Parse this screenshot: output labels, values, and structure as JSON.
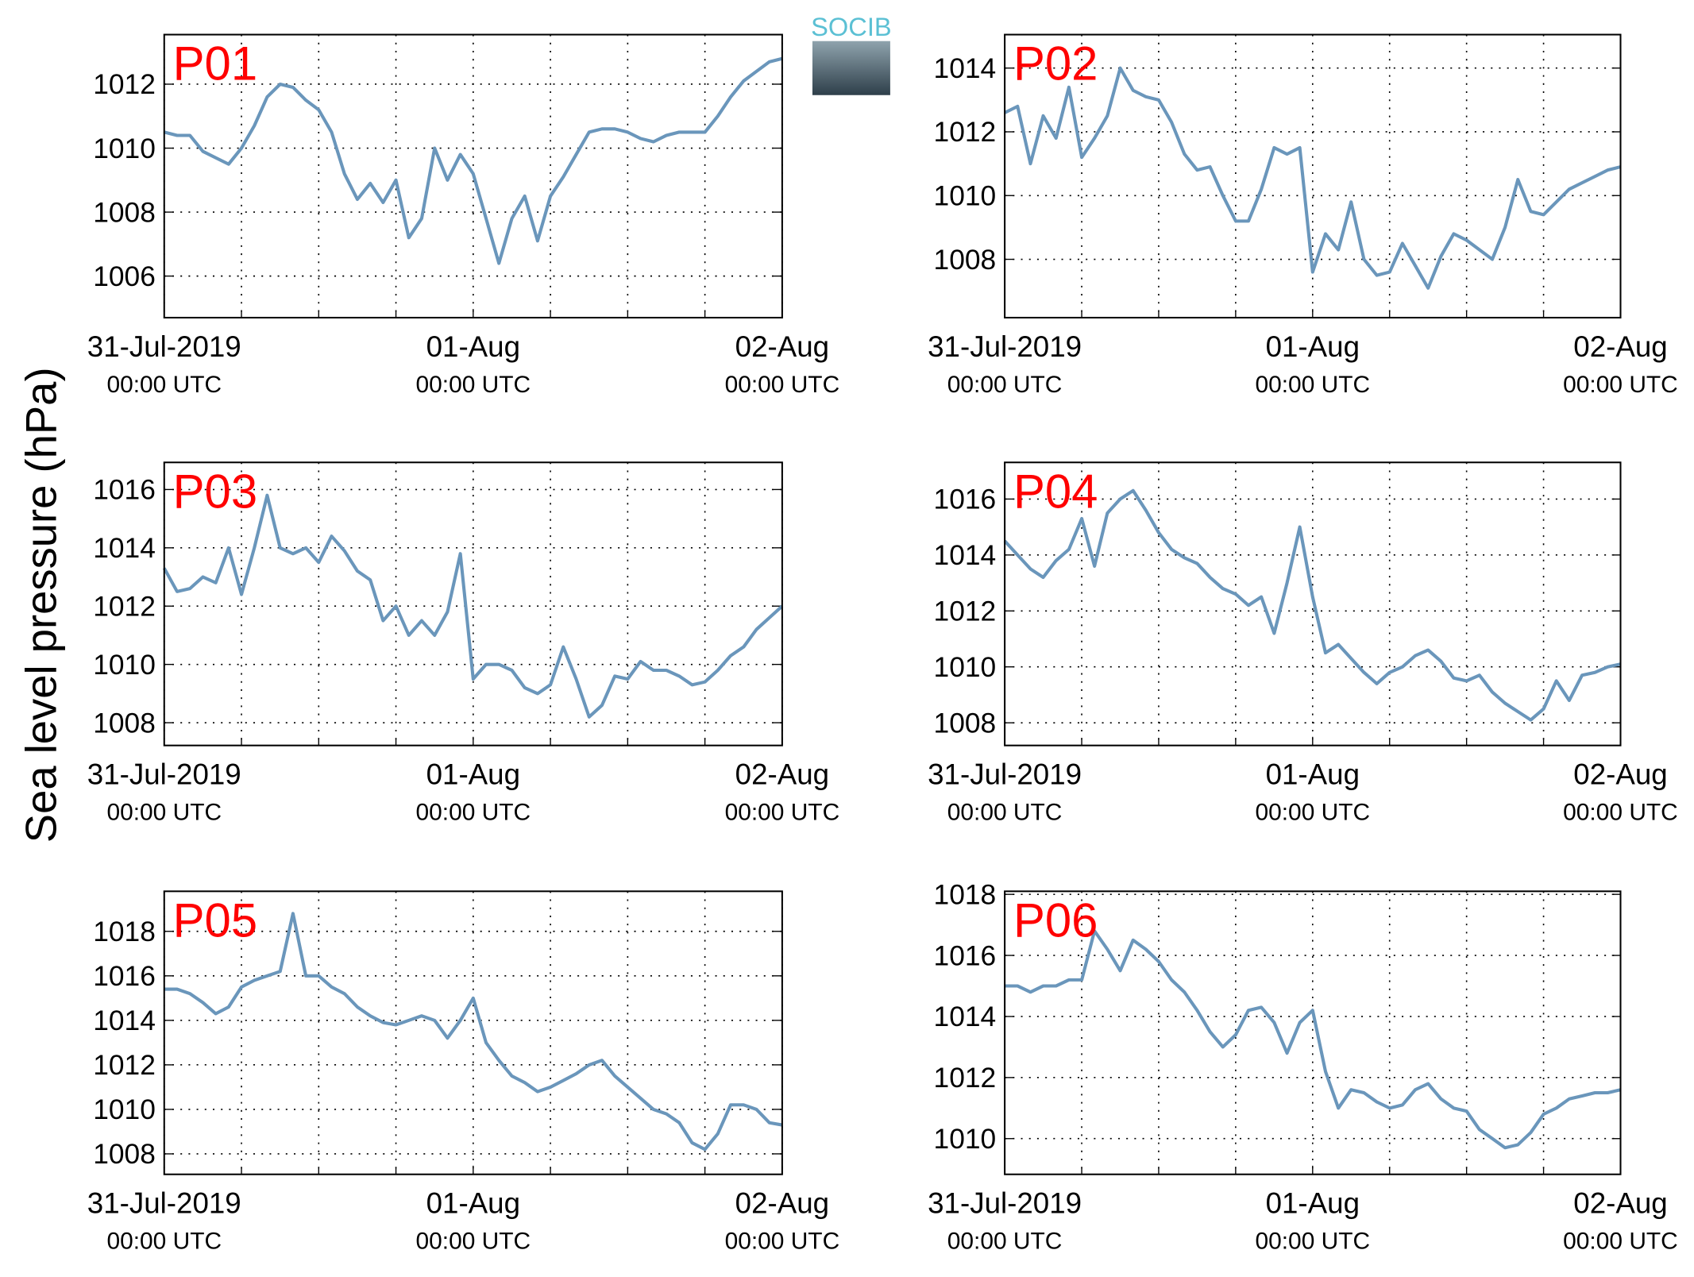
{
  "ylabel": "Sea level pressure (hPa)",
  "logo": "SOCIB",
  "chart_data": [
    {
      "type": "line",
      "title": "P01",
      "color": "#6a96bb",
      "grid": true,
      "x": [
        0,
        1,
        2,
        3,
        4,
        5,
        6,
        7,
        8,
        9,
        10,
        11,
        12,
        13,
        14,
        15,
        16,
        17,
        18,
        19,
        20,
        21,
        22,
        23,
        24,
        25,
        26,
        27,
        28,
        29,
        30,
        31,
        32,
        33,
        34,
        35,
        36,
        37,
        38,
        39,
        40,
        41,
        42,
        43,
        44,
        45,
        46,
        47,
        48
      ],
      "values": [
        1010.5,
        1010.4,
        1010.4,
        1009.9,
        1009.7,
        1009.5,
        1010.0,
        1010.7,
        1011.6,
        1012.0,
        1011.9,
        1011.5,
        1011.2,
        1010.5,
        1009.2,
        1008.4,
        1008.9,
        1008.3,
        1009.0,
        1007.2,
        1007.8,
        1010.0,
        1009.0,
        1009.8,
        1009.2,
        1007.8,
        1006.4,
        1007.8,
        1008.5,
        1007.1,
        1008.5,
        1009.1,
        1009.8,
        1010.5,
        1010.6,
        1010.6,
        1010.5,
        1010.3,
        1010.2,
        1010.4,
        1010.5,
        1010.5,
        1010.5,
        1011.0,
        1011.6,
        1012.1,
        1012.4,
        1012.7,
        1012.8
      ],
      "xlim": [
        0,
        48
      ],
      "xgrid": [
        6,
        12,
        18,
        30,
        36,
        42
      ],
      "xticks": [
        {
          "value": 0,
          "label": "31-Jul-2019",
          "sublabel": "00:00 UTC"
        },
        {
          "value": 24,
          "label": "01-Aug",
          "sublabel": "00:00 UTC"
        },
        {
          "value": 48,
          "label": "02-Aug",
          "sublabel": "00:00 UTC"
        }
      ],
      "ylim": [
        1004.7,
        1013.55
      ],
      "yticks": [
        1006,
        1008,
        1010,
        1012
      ]
    },
    {
      "type": "line",
      "title": "P02",
      "color": "#6a96bb",
      "grid": true,
      "x": [
        0,
        1,
        2,
        3,
        4,
        5,
        6,
        7,
        8,
        9,
        10,
        11,
        12,
        13,
        14,
        15,
        16,
        17,
        18,
        19,
        20,
        21,
        22,
        23,
        24,
        25,
        26,
        27,
        28,
        29,
        30,
        31,
        32,
        33,
        34,
        35,
        36,
        37,
        38,
        39,
        40,
        41,
        42,
        43,
        44,
        45,
        46,
        47,
        48
      ],
      "values": [
        1012.6,
        1012.8,
        1011.0,
        1012.5,
        1011.8,
        1013.4,
        1011.2,
        1011.8,
        1012.5,
        1014.0,
        1013.3,
        1013.1,
        1013.0,
        1012.3,
        1011.3,
        1010.8,
        1010.9,
        1010.0,
        1009.2,
        1009.2,
        1010.2,
        1011.5,
        1011.3,
        1011.5,
        1007.6,
        1008.8,
        1008.3,
        1009.8,
        1008.0,
        1007.5,
        1007.6,
        1008.5,
        1007.8,
        1007.1,
        1008.1,
        1008.8,
        1008.6,
        1008.3,
        1008.0,
        1009.0,
        1010.5,
        1009.5,
        1009.4,
        1009.8,
        1010.2,
        1010.4,
        1010.6,
        1010.8,
        1010.9
      ],
      "xlim": [
        0,
        48
      ],
      "xgrid": [
        6,
        12,
        18,
        30,
        36,
        42
      ],
      "xticks": [
        {
          "value": 0,
          "label": "31-Jul-2019",
          "sublabel": "00:00 UTC"
        },
        {
          "value": 24,
          "label": "01-Aug",
          "sublabel": "00:00 UTC"
        },
        {
          "value": 48,
          "label": "02-Aug",
          "sublabel": "00:00 UTC"
        }
      ],
      "ylim": [
        1006.17,
        1015.05
      ],
      "yticks": [
        1008,
        1010,
        1012,
        1014
      ]
    },
    {
      "type": "line",
      "title": "P03",
      "color": "#6a96bb",
      "grid": true,
      "x": [
        0,
        1,
        2,
        3,
        4,
        5,
        6,
        7,
        8,
        9,
        10,
        11,
        12,
        13,
        14,
        15,
        16,
        17,
        18,
        19,
        20,
        21,
        22,
        23,
        24,
        25,
        26,
        27,
        28,
        29,
        30,
        31,
        32,
        33,
        34,
        35,
        36,
        37,
        38,
        39,
        40,
        41,
        42,
        43,
        44,
        45,
        46,
        47,
        48
      ],
      "values": [
        1013.3,
        1012.5,
        1012.6,
        1013.0,
        1012.8,
        1014.0,
        1012.4,
        1014.0,
        1015.8,
        1014.0,
        1013.8,
        1014.0,
        1013.5,
        1014.4,
        1013.9,
        1013.2,
        1012.9,
        1011.5,
        1012.0,
        1011.0,
        1011.5,
        1011.0,
        1011.8,
        1013.8,
        1009.5,
        1010.0,
        1010.0,
        1009.8,
        1009.2,
        1009.0,
        1009.3,
        1010.6,
        1009.5,
        1008.2,
        1008.6,
        1009.6,
        1009.5,
        1010.1,
        1009.8,
        1009.8,
        1009.6,
        1009.3,
        1009.4,
        1009.8,
        1010.3,
        1010.6,
        1011.2,
        1011.6,
        1012.0
      ],
      "xlim": [
        0,
        48
      ],
      "xgrid": [
        6,
        12,
        18,
        30,
        36,
        42
      ],
      "xticks": [
        {
          "value": 0,
          "label": "31-Jul-2019",
          "sublabel": "00:00 UTC"
        },
        {
          "value": 24,
          "label": "01-Aug",
          "sublabel": "00:00 UTC"
        },
        {
          "value": 48,
          "label": "02-Aug",
          "sublabel": "00:00 UTC"
        }
      ],
      "ylim": [
        1007.22,
        1016.93
      ],
      "yticks": [
        1008,
        1010,
        1012,
        1014,
        1016
      ]
    },
    {
      "type": "line",
      "title": "P04",
      "color": "#6a96bb",
      "grid": true,
      "x": [
        0,
        1,
        2,
        3,
        4,
        5,
        6,
        7,
        8,
        9,
        10,
        11,
        12,
        13,
        14,
        15,
        16,
        17,
        18,
        19,
        20,
        21,
        22,
        23,
        24,
        25,
        26,
        27,
        28,
        29,
        30,
        31,
        32,
        33,
        34,
        35,
        36,
        37,
        38,
        39,
        40,
        41,
        42,
        43,
        44,
        45,
        46,
        47,
        48
      ],
      "values": [
        1014.5,
        1014.0,
        1013.5,
        1013.2,
        1013.8,
        1014.2,
        1015.3,
        1013.6,
        1015.5,
        1016.0,
        1016.3,
        1015.6,
        1014.8,
        1014.2,
        1013.9,
        1013.7,
        1013.2,
        1012.8,
        1012.6,
        1012.2,
        1012.5,
        1011.2,
        1013.0,
        1015.0,
        1012.5,
        1010.5,
        1010.8,
        1010.3,
        1009.8,
        1009.4,
        1009.8,
        1010.0,
        1010.4,
        1010.6,
        1010.2,
        1009.6,
        1009.5,
        1009.7,
        1009.1,
        1008.7,
        1008.4,
        1008.1,
        1008.5,
        1009.5,
        1008.8,
        1009.7,
        1009.8,
        1010.0,
        1010.1
      ],
      "xlim": [
        0,
        48
      ],
      "xgrid": [
        6,
        12,
        18,
        30,
        36,
        42
      ],
      "xticks": [
        {
          "value": 0,
          "label": "31-Jul-2019",
          "sublabel": "00:00 UTC"
        },
        {
          "value": 24,
          "label": "01-Aug",
          "sublabel": "00:00 UTC"
        },
        {
          "value": 48,
          "label": "02-Aug",
          "sublabel": "00:00 UTC"
        }
      ],
      "ylim": [
        1007.19,
        1017.31
      ],
      "yticks": [
        1008,
        1010,
        1012,
        1014,
        1016
      ]
    },
    {
      "type": "line",
      "title": "P05",
      "color": "#6a96bb",
      "grid": true,
      "x": [
        0,
        1,
        2,
        3,
        4,
        5,
        6,
        7,
        8,
        9,
        10,
        11,
        12,
        13,
        14,
        15,
        16,
        17,
        18,
        19,
        20,
        21,
        22,
        23,
        24,
        25,
        26,
        27,
        28,
        29,
        30,
        31,
        32,
        33,
        34,
        35,
        36,
        37,
        38,
        39,
        40,
        41,
        42,
        43,
        44,
        45,
        46,
        47,
        48
      ],
      "values": [
        1015.4,
        1015.4,
        1015.2,
        1014.8,
        1014.3,
        1014.6,
        1015.5,
        1015.8,
        1016.0,
        1016.2,
        1018.8,
        1016.0,
        1016.0,
        1015.5,
        1015.2,
        1014.6,
        1014.2,
        1013.9,
        1013.8,
        1014.0,
        1014.2,
        1014.0,
        1013.2,
        1014.0,
        1015.0,
        1013.0,
        1012.2,
        1011.5,
        1011.2,
        1010.8,
        1011.0,
        1011.3,
        1011.6,
        1012.0,
        1012.2,
        1011.5,
        1011.0,
        1010.5,
        1010.0,
        1009.8,
        1009.4,
        1008.5,
        1008.2,
        1008.9,
        1010.2,
        1010.2,
        1010.0,
        1009.4,
        1009.3
      ],
      "xlim": [
        0,
        48
      ],
      "xgrid": [
        6,
        12,
        18,
        30,
        36,
        42
      ],
      "xticks": [
        {
          "value": 0,
          "label": "31-Jul-2019",
          "sublabel": "00:00 UTC"
        },
        {
          "value": 24,
          "label": "01-Aug",
          "sublabel": "00:00 UTC"
        },
        {
          "value": 48,
          "label": "02-Aug",
          "sublabel": "00:00 UTC"
        }
      ],
      "ylim": [
        1007.08,
        1019.8
      ],
      "yticks": [
        1008,
        1010,
        1012,
        1014,
        1016,
        1018
      ]
    },
    {
      "type": "line",
      "title": "P06",
      "color": "#6a96bb",
      "grid": true,
      "x": [
        0,
        1,
        2,
        3,
        4,
        5,
        6,
        7,
        8,
        9,
        10,
        11,
        12,
        13,
        14,
        15,
        16,
        17,
        18,
        19,
        20,
        21,
        22,
        23,
        24,
        25,
        26,
        27,
        28,
        29,
        30,
        31,
        32,
        33,
        34,
        35,
        36,
        37,
        38,
        39,
        40,
        41,
        42,
        43,
        44,
        45,
        46,
        47,
        48
      ],
      "values": [
        1015.0,
        1015.0,
        1014.8,
        1015.0,
        1015.0,
        1015.2,
        1015.2,
        1016.8,
        1016.2,
        1015.5,
        1016.5,
        1016.2,
        1015.8,
        1015.2,
        1014.8,
        1014.2,
        1013.5,
        1013.0,
        1013.4,
        1014.2,
        1014.3,
        1013.8,
        1012.8,
        1013.8,
        1014.2,
        1012.2,
        1011.0,
        1011.6,
        1011.5,
        1011.2,
        1011.0,
        1011.1,
        1011.6,
        1011.8,
        1011.3,
        1011.0,
        1010.9,
        1010.3,
        1010.0,
        1009.7,
        1009.8,
        1010.2,
        1010.8,
        1011.0,
        1011.3,
        1011.4,
        1011.5,
        1011.5,
        1011.6
      ],
      "xlim": [
        0,
        48
      ],
      "xgrid": [
        6,
        12,
        18,
        30,
        36,
        42
      ],
      "xticks": [
        {
          "value": 0,
          "label": "31-Jul-2019",
          "sublabel": "00:00 UTC"
        },
        {
          "value": 24,
          "label": "01-Aug",
          "sublabel": "00:00 UTC"
        },
        {
          "value": 48,
          "label": "02-Aug",
          "sublabel": "00:00 UTC"
        }
      ],
      "ylim": [
        1008.83,
        1018.1
      ],
      "yticks": [
        1010,
        1012,
        1014,
        1016,
        1018
      ]
    }
  ]
}
